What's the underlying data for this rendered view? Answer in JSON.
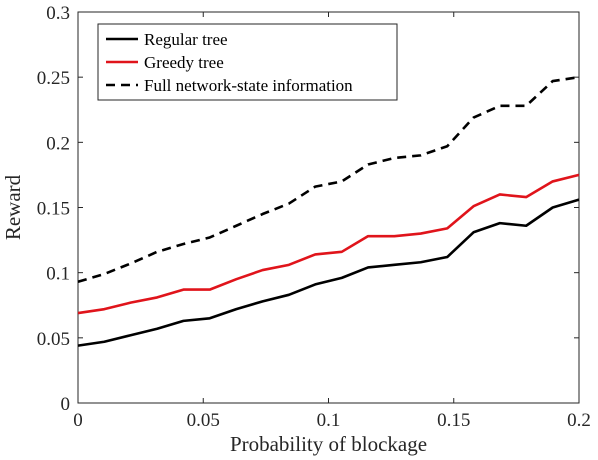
{
  "chart_data": {
    "type": "line",
    "xlabel": "Probability of blockage",
    "ylabel": "Reward",
    "xlim": [
      0,
      0.2
    ],
    "ylim": [
      0,
      0.3
    ],
    "xticks": [
      "0",
      "0.05",
      "0.1",
      "0.15",
      "0.2"
    ],
    "yticks": [
      "0",
      "0.05",
      "0.1",
      "0.15",
      "0.2",
      "0.25",
      "0.3"
    ],
    "grid": false,
    "legend_position": "top-left",
    "x": [
      0,
      0.0105,
      0.021,
      0.0316,
      0.0421,
      0.0526,
      0.0632,
      0.0737,
      0.0842,
      0.0947,
      0.1053,
      0.1158,
      0.1263,
      0.1368,
      0.1474,
      0.1579,
      0.1684,
      0.1789,
      0.1895,
      0.2
    ],
    "series": [
      {
        "name": "Regular tree",
        "color": "#000000",
        "dash": "solid",
        "values": [
          0.044,
          0.047,
          0.052,
          0.057,
          0.063,
          0.065,
          0.072,
          0.078,
          0.083,
          0.091,
          0.096,
          0.104,
          0.106,
          0.108,
          0.112,
          0.131,
          0.138,
          0.136,
          0.15,
          0.156
        ]
      },
      {
        "name": "Greedy tree",
        "color": "#e0141b",
        "dash": "solid",
        "values": [
          0.069,
          0.072,
          0.077,
          0.081,
          0.087,
          0.087,
          0.095,
          0.102,
          0.106,
          0.114,
          0.116,
          0.128,
          0.128,
          0.13,
          0.134,
          0.151,
          0.16,
          0.158,
          0.17,
          0.175
        ]
      },
      {
        "name": "Full network-state information",
        "color": "#000000",
        "dash": "dashed",
        "values": [
          0.093,
          0.099,
          0.107,
          0.116,
          0.122,
          0.127,
          0.136,
          0.145,
          0.153,
          0.166,
          0.17,
          0.183,
          0.188,
          0.19,
          0.197,
          0.219,
          0.228,
          0.228,
          0.247,
          0.25
        ]
      }
    ]
  }
}
